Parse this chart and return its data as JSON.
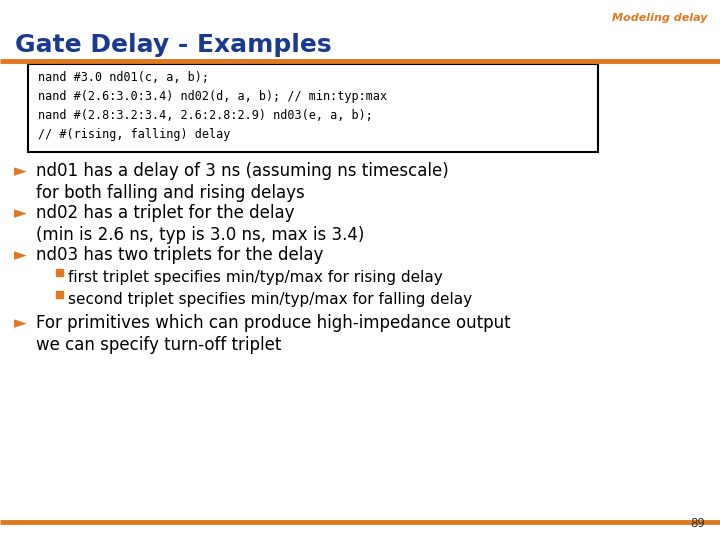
{
  "title": "Gate Delay - Examples",
  "watermark": "Modeling delay",
  "page_number": "89",
  "code_lines": [
    "nand #3.0 nd01(c, a, b);",
    "nand #(2.6:3.0:3.4) nd02(d, a, b); // min:typ:max",
    "nand #(2.8:3.2:3.4, 2.6:2.8:2.9) nd03(e, a, b);",
    "// #(rising, falling) delay"
  ],
  "bullets": [
    {
      "level": 1,
      "text": "nd01 has a delay of 3 ns (assuming ns timescale)\nfor both falling and rising delays"
    },
    {
      "level": 1,
      "text": "nd02 has a triplet for the delay\n(min is 2.6 ns, typ is 3.0 ns, max is 3.4)"
    },
    {
      "level": 1,
      "text": "nd03 has two triplets for the delay"
    },
    {
      "level": 2,
      "text": "first triplet specifies min/typ/max for rising delay"
    },
    {
      "level": 2,
      "text": "second triplet specifies min/typ/max for falling delay"
    },
    {
      "level": 1,
      "text": "For primitives which can produce high-impedance output\nwe can specify turn-off triplet"
    }
  ],
  "title_color": "#1a3a8f",
  "watermark_color": "#e07820",
  "bullet_arrow_color": "#e07820",
  "sub_bullet_color": "#e07820",
  "code_bg": "#ffffff",
  "code_border": "#000000",
  "bg_color": "#ffffff",
  "bottom_line_color": "#e07820",
  "top_line_color": "#e07820",
  "title_fontsize": 18,
  "watermark_fontsize": 8,
  "code_fontsize": 8.5,
  "bullet_fontsize": 12,
  "sub_bullet_fontsize": 11
}
